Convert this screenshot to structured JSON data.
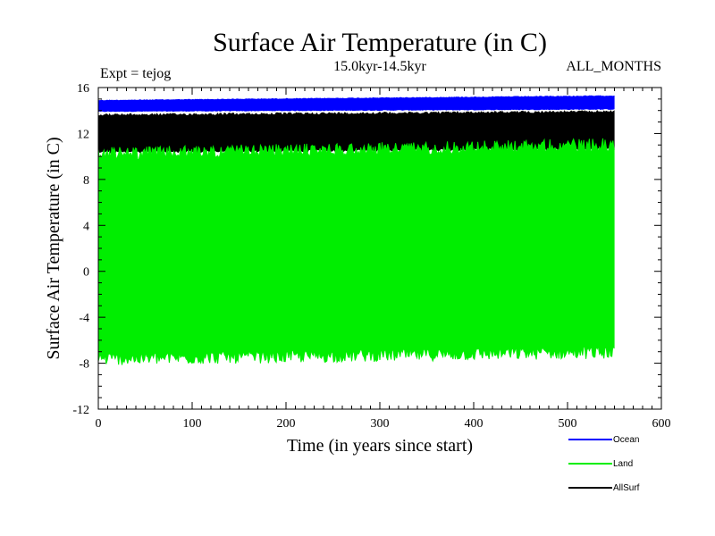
{
  "chart_data": {
    "type": "line",
    "title": "Surface Air Temperature (in C)",
    "subtitle": "15.0kyr-14.5kyr",
    "experiment": "Expt = tejog",
    "months_label": "ALL_MONTHS",
    "xlabel": "Time (in years since start)",
    "ylabel": "Surface Air Temperature (in C)",
    "xlim": [
      0,
      600
    ],
    "ylim": [
      -12,
      16
    ],
    "xticks": [
      0,
      100,
      200,
      300,
      400,
      500,
      600
    ],
    "yticks": [
      -12,
      -8,
      -4,
      0,
      4,
      8,
      12,
      16
    ],
    "x_extent": [
      0,
      550
    ],
    "series": [
      {
        "name": "Ocean",
        "color": "#0000ff",
        "band_start": [
          13.9,
          14.9
        ],
        "band_end": [
          14.1,
          15.3
        ]
      },
      {
        "name": "AllSurf",
        "color": "#000000",
        "band_start": [
          10.3,
          13.7
        ],
        "band_end": [
          10.6,
          14.0
        ]
      },
      {
        "name": "Land",
        "color": "#00ee00",
        "band_start": [
          -8.2,
          10.8
        ],
        "band_end": [
          -7.6,
          11.6
        ]
      }
    ]
  },
  "legend": {
    "items": [
      {
        "label": "Ocean",
        "color": "#0000ff"
      },
      {
        "label": "Land",
        "color": "#00ee00"
      },
      {
        "label": "AllSurf",
        "color": "#000000"
      }
    ]
  }
}
